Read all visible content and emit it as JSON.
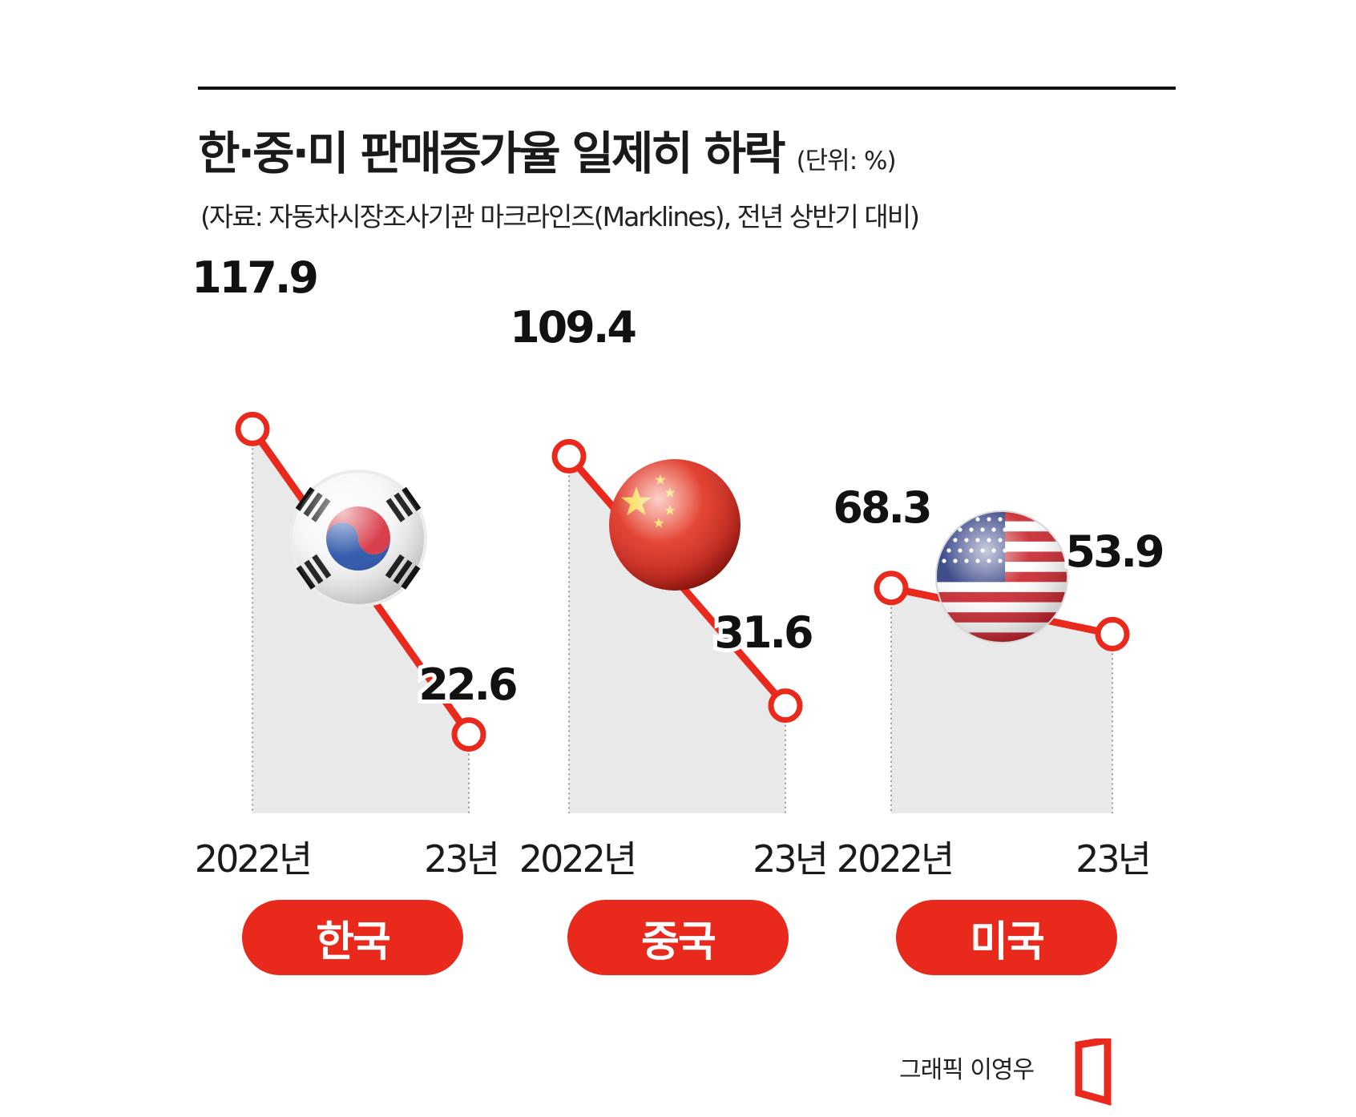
{
  "header": {
    "title": "한·중·미 판매증가율 일제히 하락",
    "unit": "(단위: %)",
    "source": "(자료: 자동차시장조사기관 마크라인즈(Marklines), 전년 상반기 대비)"
  },
  "credit": "그래픽 이영우",
  "colors": {
    "line": "#e8291c",
    "area": "#e9e9e9",
    "pill": "#e8291c",
    "rule": "#111111"
  },
  "chart_data": [
    {
      "type": "line",
      "country": "한국",
      "flag": "korea-flag-icon",
      "x": [
        "2022년",
        "23년"
      ],
      "values": [
        117.9,
        22.6
      ],
      "labels": [
        "117.9",
        "22.6"
      ]
    },
    {
      "type": "line",
      "country": "중국",
      "flag": "china-flag-icon",
      "x": [
        "2022년",
        "23년"
      ],
      "values": [
        109.4,
        31.6
      ],
      "labels": [
        "109.4",
        "31.6"
      ]
    },
    {
      "type": "line",
      "country": "미국",
      "flag": "usa-flag-icon",
      "x": [
        "2022년",
        "23년"
      ],
      "values": [
        68.3,
        53.9
      ],
      "labels": [
        "68.3",
        "53.9"
      ]
    }
  ]
}
